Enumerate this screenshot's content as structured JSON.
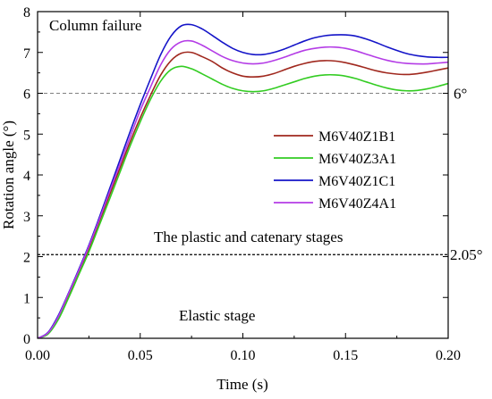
{
  "chart_data": {
    "type": "line",
    "xlabel": "Time (s)",
    "ylabel": "Rotation angle (°)",
    "xlim": [
      0.0,
      0.2
    ],
    "ylim": [
      0,
      8
    ],
    "x_ticks": [
      "0.00",
      "0.05",
      "0.10",
      "0.15",
      "0.20"
    ],
    "y_ticks": [
      "0",
      "1",
      "2",
      "3",
      "4",
      "5",
      "6",
      "7",
      "8"
    ],
    "grid": false,
    "legend_position": "right",
    "series": [
      {
        "name": "M6V40Z1B1",
        "color": "#a0281e",
        "x": [
          0,
          0.005,
          0.01,
          0.015,
          0.02,
          0.025,
          0.03,
          0.035,
          0.04,
          0.045,
          0.05,
          0.055,
          0.06,
          0.065,
          0.07,
          0.075,
          0.08,
          0.085,
          0.09,
          0.095,
          0.1,
          0.105,
          0.11,
          0.115,
          0.12,
          0.125,
          0.13,
          0.135,
          0.14,
          0.145,
          0.15,
          0.155,
          0.16,
          0.165,
          0.17,
          0.175,
          0.18,
          0.185,
          0.19,
          0.195,
          0.2
        ],
        "values": [
          0,
          0.12,
          0.5,
          1.05,
          1.62,
          2.2,
          2.85,
          3.5,
          4.15,
          4.8,
          5.4,
          5.95,
          6.45,
          6.8,
          6.98,
          7.0,
          6.9,
          6.78,
          6.62,
          6.5,
          6.42,
          6.4,
          6.42,
          6.48,
          6.57,
          6.66,
          6.73,
          6.78,
          6.8,
          6.79,
          6.75,
          6.69,
          6.62,
          6.55,
          6.5,
          6.47,
          6.46,
          6.48,
          6.52,
          6.57,
          6.62
        ]
      },
      {
        "name": "M6V40Z3A1",
        "color": "#33cc22",
        "x": [
          0,
          0.005,
          0.01,
          0.015,
          0.02,
          0.025,
          0.03,
          0.035,
          0.04,
          0.045,
          0.05,
          0.055,
          0.06,
          0.065,
          0.07,
          0.075,
          0.08,
          0.085,
          0.09,
          0.095,
          0.1,
          0.105,
          0.11,
          0.115,
          0.12,
          0.125,
          0.13,
          0.135,
          0.14,
          0.145,
          0.15,
          0.155,
          0.16,
          0.165,
          0.17,
          0.175,
          0.18,
          0.185,
          0.19,
          0.195,
          0.2
        ],
        "values": [
          0,
          0.1,
          0.45,
          0.98,
          1.55,
          2.12,
          2.76,
          3.4,
          4.05,
          4.7,
          5.3,
          5.85,
          6.3,
          6.58,
          6.66,
          6.6,
          6.48,
          6.35,
          6.22,
          6.12,
          6.06,
          6.04,
          6.06,
          6.12,
          6.2,
          6.28,
          6.36,
          6.42,
          6.45,
          6.45,
          6.42,
          6.36,
          6.28,
          6.2,
          6.13,
          6.08,
          6.06,
          6.07,
          6.11,
          6.17,
          6.24
        ]
      },
      {
        "name": "M6V40Z1C1",
        "color": "#1414c8",
        "x": [
          0,
          0.005,
          0.01,
          0.015,
          0.02,
          0.025,
          0.03,
          0.035,
          0.04,
          0.045,
          0.05,
          0.055,
          0.06,
          0.065,
          0.07,
          0.075,
          0.08,
          0.085,
          0.09,
          0.095,
          0.1,
          0.105,
          0.11,
          0.115,
          0.12,
          0.125,
          0.13,
          0.135,
          0.14,
          0.145,
          0.15,
          0.155,
          0.16,
          0.165,
          0.17,
          0.175,
          0.18,
          0.185,
          0.19,
          0.195,
          0.2
        ],
        "values": [
          0,
          0.14,
          0.55,
          1.1,
          1.68,
          2.28,
          2.95,
          3.65,
          4.35,
          5.05,
          5.72,
          6.35,
          6.95,
          7.4,
          7.65,
          7.68,
          7.58,
          7.42,
          7.25,
          7.1,
          7.0,
          6.95,
          6.95,
          7.0,
          7.08,
          7.18,
          7.28,
          7.36,
          7.41,
          7.43,
          7.43,
          7.4,
          7.33,
          7.24,
          7.14,
          7.05,
          6.97,
          6.92,
          6.89,
          6.88,
          6.88
        ]
      },
      {
        "name": "M6V40Z4A1",
        "color": "#b43ce6",
        "x": [
          0,
          0.005,
          0.01,
          0.015,
          0.02,
          0.025,
          0.03,
          0.035,
          0.04,
          0.045,
          0.05,
          0.055,
          0.06,
          0.065,
          0.07,
          0.075,
          0.08,
          0.085,
          0.09,
          0.095,
          0.1,
          0.105,
          0.11,
          0.115,
          0.12,
          0.125,
          0.13,
          0.135,
          0.14,
          0.145,
          0.15,
          0.155,
          0.16,
          0.165,
          0.17,
          0.175,
          0.18,
          0.185,
          0.19,
          0.195,
          0.2
        ],
        "values": [
          0,
          0.13,
          0.52,
          1.08,
          1.65,
          2.25,
          2.9,
          3.58,
          4.25,
          4.92,
          5.58,
          6.15,
          6.7,
          7.08,
          7.26,
          7.28,
          7.18,
          7.04,
          6.9,
          6.8,
          6.74,
          6.72,
          6.74,
          6.8,
          6.88,
          6.97,
          7.05,
          7.1,
          7.13,
          7.13,
          7.1,
          7.04,
          6.96,
          6.88,
          6.81,
          6.76,
          6.73,
          6.72,
          6.72,
          6.74,
          6.76
        ]
      }
    ],
    "reference_lines": [
      {
        "y": 6,
        "label": "6°",
        "style": "dashed",
        "color": "#808080"
      },
      {
        "y": 2.05,
        "label": "2.05°",
        "style": "dashed",
        "color": "#000000"
      }
    ],
    "annotations": {
      "column_failure": "Column failure",
      "plastic_catenary": "The plastic and catenary stages",
      "elastic": "Elastic stage"
    }
  }
}
